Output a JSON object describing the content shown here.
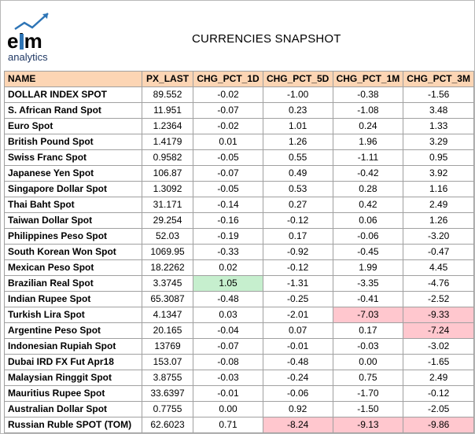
{
  "logo": {
    "text_top": "elm",
    "text_bottom": "analytics"
  },
  "title": "CURRENCIES SNAPSHOT",
  "columns": [
    "NAME",
    "PX_LAST",
    "CHG_PCT_1D",
    "CHG_PCT_5D",
    "CHG_PCT_1M",
    "CHG_PCT_3M"
  ],
  "colors": {
    "header_bg": "#fcd5b4",
    "positive_highlight": "#c6efce",
    "negative_highlight": "#ffc7ce"
  },
  "rows": [
    {
      "name": "DOLLAR INDEX SPOT",
      "px_last": "89.552",
      "chg_1d": "-0.02",
      "chg_5d": "-1.00",
      "chg_1m": "-0.38",
      "chg_3m": "-1.56"
    },
    {
      "name": "S. African Rand Spot",
      "px_last": "11.951",
      "chg_1d": "-0.07",
      "chg_5d": "0.23",
      "chg_1m": "-1.08",
      "chg_3m": "3.48"
    },
    {
      "name": "Euro Spot",
      "px_last": "1.2364",
      "chg_1d": "-0.02",
      "chg_5d": "1.01",
      "chg_1m": "0.24",
      "chg_3m": "1.33"
    },
    {
      "name": "British Pound Spot",
      "px_last": "1.4179",
      "chg_1d": "0.01",
      "chg_5d": "1.26",
      "chg_1m": "1.96",
      "chg_3m": "3.29"
    },
    {
      "name": "Swiss Franc Spot",
      "px_last": "0.9582",
      "chg_1d": "-0.05",
      "chg_5d": "0.55",
      "chg_1m": "-1.11",
      "chg_3m": "0.95"
    },
    {
      "name": "Japanese Yen Spot",
      "px_last": "106.87",
      "chg_1d": "-0.07",
      "chg_5d": "0.49",
      "chg_1m": "-0.42",
      "chg_3m": "3.92"
    },
    {
      "name": "Singapore Dollar Spot",
      "px_last": "1.3092",
      "chg_1d": "-0.05",
      "chg_5d": "0.53",
      "chg_1m": "0.28",
      "chg_3m": "1.16"
    },
    {
      "name": "Thai Baht Spot",
      "px_last": "31.171",
      "chg_1d": "-0.14",
      "chg_5d": "0.27",
      "chg_1m": "0.42",
      "chg_3m": "2.49"
    },
    {
      "name": "Taiwan Dollar Spot",
      "px_last": "29.254",
      "chg_1d": "-0.16",
      "chg_5d": "-0.12",
      "chg_1m": "0.06",
      "chg_3m": "1.26"
    },
    {
      "name": "Philippines Peso Spot",
      "px_last": "52.03",
      "chg_1d": "-0.19",
      "chg_5d": "0.17",
      "chg_1m": "-0.06",
      "chg_3m": "-3.20"
    },
    {
      "name": "South Korean Won Spot",
      "px_last": "1069.95",
      "chg_1d": "-0.33",
      "chg_5d": "-0.92",
      "chg_1m": "-0.45",
      "chg_3m": "-0.47"
    },
    {
      "name": "Mexican Peso Spot",
      "px_last": "18.2262",
      "chg_1d": "0.02",
      "chg_5d": "-0.12",
      "chg_1m": "1.99",
      "chg_3m": "4.45"
    },
    {
      "name": "Brazilian Real Spot",
      "px_last": "3.3745",
      "chg_1d": "1.05",
      "chg_5d": "-1.31",
      "chg_1m": "-3.35",
      "chg_3m": "-4.76",
      "highlight": {
        "chg_1d": "green"
      }
    },
    {
      "name": "Indian Rupee Spot",
      "px_last": "65.3087",
      "chg_1d": "-0.48",
      "chg_5d": "-0.25",
      "chg_1m": "-0.41",
      "chg_3m": "-2.52"
    },
    {
      "name": "Turkish Lira Spot",
      "px_last": "4.1347",
      "chg_1d": "0.03",
      "chg_5d": "-2.01",
      "chg_1m": "-7.03",
      "chg_3m": "-9.33",
      "highlight": {
        "chg_1m": "red",
        "chg_3m": "red"
      }
    },
    {
      "name": "Argentine Peso Spot",
      "px_last": "20.165",
      "chg_1d": "-0.04",
      "chg_5d": "0.07",
      "chg_1m": "0.17",
      "chg_3m": "-7.24",
      "highlight": {
        "chg_3m": "red"
      }
    },
    {
      "name": "Indonesian Rupiah Spot",
      "px_last": "13769",
      "chg_1d": "-0.07",
      "chg_5d": "-0.01",
      "chg_1m": "-0.03",
      "chg_3m": "-3.02"
    },
    {
      "name": "Dubai IRD FX Fut  Apr18",
      "px_last": "153.07",
      "chg_1d": "-0.08",
      "chg_5d": "-0.48",
      "chg_1m": "0.00",
      "chg_3m": "-1.65"
    },
    {
      "name": "Malaysian Ringgit Spot",
      "px_last": "3.8755",
      "chg_1d": "-0.03",
      "chg_5d": "-0.24",
      "chg_1m": "0.75",
      "chg_3m": "2.49"
    },
    {
      "name": "Mauritius Rupee Spot",
      "px_last": "33.6397",
      "chg_1d": "-0.01",
      "chg_5d": "-0.06",
      "chg_1m": "-1.70",
      "chg_3m": "-0.12"
    },
    {
      "name": "Australian Dollar Spot",
      "px_last": "0.7755",
      "chg_1d": "0.00",
      "chg_5d": "0.92",
      "chg_1m": "-1.50",
      "chg_3m": "-2.05"
    },
    {
      "name": "Russian Ruble SPOT (TOM)",
      "px_last": "62.6023",
      "chg_1d": "0.71",
      "chg_5d": "-8.24",
      "chg_1m": "-9.13",
      "chg_3m": "-9.86",
      "highlight": {
        "chg_5d": "red",
        "chg_1m": "red",
        "chg_3m": "red"
      }
    }
  ]
}
